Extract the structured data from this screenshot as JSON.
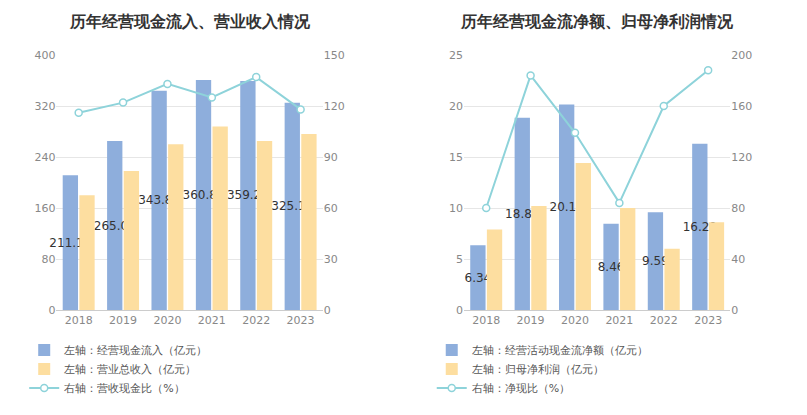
{
  "chart_data": [
    {
      "type": "bar",
      "title": "历年经营现金流入、营业收入情况",
      "categories": [
        "2018",
        "2019",
        "2020",
        "2021",
        "2022",
        "2023"
      ],
      "series": [
        {
          "name": "左轴：经营现金流入（亿元）",
          "type": "bar",
          "color": "#8eaedc",
          "data_labels": true,
          "values": [
            211.19,
            265.04,
            343.83,
            360.83,
            359.26,
            325.13
          ]
        },
        {
          "name": "左轴：营业总收入（亿元）",
          "type": "bar",
          "color": "#fddea0",
          "values": [
            180,
            218,
            260,
            288,
            265,
            276
          ]
        },
        {
          "name": "右轴：营收现金比（%）",
          "type": "line",
          "axis": "y2",
          "color": "#8ed3da",
          "marker": "circle",
          "values": [
            116,
            122,
            133,
            125,
            137,
            118
          ]
        }
      ],
      "ylim": [
        0,
        400
      ],
      "yticks": [
        0,
        80,
        160,
        240,
        320,
        400
      ],
      "y2lim": [
        0,
        150
      ],
      "y2ticks": [
        0,
        30,
        60,
        90,
        120,
        150
      ],
      "grid": true,
      "legend": "bottom"
    },
    {
      "type": "bar",
      "title": "历年经营现金流净额、归母净利润情况",
      "categories": [
        "2018",
        "2019",
        "2020",
        "2021",
        "2022",
        "2023"
      ],
      "series": [
        {
          "name": "左轴：经营活动现金流净额（亿元）",
          "type": "bar",
          "color": "#8eaedc",
          "data_labels": true,
          "values": [
            6.34,
            18.84,
            20.14,
            8.46,
            9.59,
            16.29
          ]
        },
        {
          "name": "左轴：归母净利润（亿元）",
          "type": "bar",
          "color": "#fddea0",
          "values": [
            7.9,
            10.2,
            14.4,
            10.0,
            6.0,
            8.6
          ]
        },
        {
          "name": "右轴：净现比（%）",
          "type": "line",
          "axis": "y2",
          "color": "#8ed3da",
          "marker": "circle",
          "values": [
            80,
            184,
            139,
            84,
            160,
            188
          ]
        }
      ],
      "ylim": [
        0,
        25
      ],
      "yticks": [
        0,
        5,
        10,
        15,
        20,
        25
      ],
      "y2lim": [
        0,
        200
      ],
      "y2ticks": [
        0,
        40,
        80,
        120,
        160,
        200
      ],
      "grid": true,
      "legend": "bottom"
    }
  ]
}
